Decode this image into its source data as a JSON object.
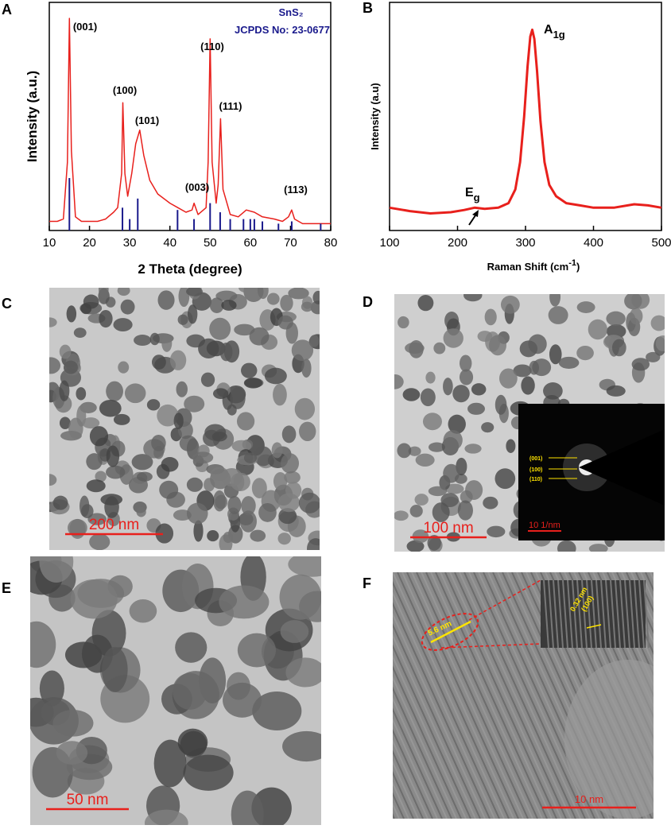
{
  "panel_labels": [
    "A",
    "B",
    "C",
    "D",
    "E",
    "F"
  ],
  "chart_data": [
    {
      "type": "line",
      "xlabel": "2 Theta (degree)",
      "ylabel": "Intensity (a.u.)",
      "legend_lines": [
        "SnS₂",
        "JCPDS No: 23-0677"
      ],
      "peak_labels": [
        "(001)",
        "(100)",
        "(101)",
        "(003)",
        "(110)",
        "(111)",
        "(113)"
      ],
      "xlim": [
        10,
        80
      ],
      "xticks": [
        10,
        20,
        30,
        40,
        50,
        60,
        70,
        80
      ],
      "ylim": [
        0,
        100
      ],
      "series": [
        {
          "color": "#e8201c",
          "style": "line",
          "x": [
            10,
            12,
            13.5,
            14.5,
            15,
            15.5,
            16.5,
            18,
            20,
            22,
            24,
            26,
            27,
            28,
            28.3,
            28.8,
            29.5,
            30.5,
            31.5,
            32.5,
            33.5,
            35,
            37,
            40,
            42,
            44,
            45.5,
            46,
            47,
            49,
            49.5,
            50,
            50.5,
            51.5,
            52,
            52.6,
            53.2,
            55,
            57,
            59,
            61,
            63,
            66,
            68,
            69.5,
            70.3,
            71,
            73,
            76,
            80
          ],
          "values": [
            4,
            4,
            5,
            30,
            93,
            35,
            6,
            4,
            4,
            4,
            5,
            8,
            10,
            25,
            56,
            25,
            15,
            25,
            38,
            44,
            33,
            22,
            16,
            12,
            10,
            8,
            9,
            12,
            7,
            10,
            30,
            84,
            30,
            12,
            20,
            49,
            18,
            7,
            6,
            9,
            8,
            6,
            5,
            4,
            6,
            9,
            5,
            3,
            3,
            3
          ]
        },
        {
          "color": "#1a1a8c",
          "style": "stick",
          "x": [
            15,
            28.2,
            30,
            32,
            41.9,
            46,
            50,
            52.5,
            55,
            58.3,
            60,
            61,
            63,
            67,
            70.3,
            77.5
          ],
          "values": [
            23,
            10,
            5,
            14,
            9,
            5,
            12,
            8,
            5,
            5,
            5,
            5,
            4,
            3,
            4,
            3
          ]
        }
      ]
    },
    {
      "type": "line",
      "xlabel": {
        "text": "Raman Shift (cm",
        "sup": "-1",
        "end": ")"
      },
      "ylabel": "Intensity (a.u)",
      "peak_labels": [
        {
          "base": "A",
          "sub": "1g"
        },
        {
          "base": "E",
          "sub": "g"
        }
      ],
      "xlim": [
        100,
        500
      ],
      "xticks": [
        100,
        200,
        300,
        400,
        500
      ],
      "ylim": [
        0,
        100
      ],
      "series": [
        {
          "color": "#e8201c",
          "style": "line",
          "x": [
            100,
            130,
            160,
            190,
            210,
            225,
            240,
            260,
            275,
            285,
            292,
            298,
            303,
            307,
            310,
            313,
            317,
            322,
            328,
            335,
            345,
            360,
            380,
            400,
            430,
            460,
            480,
            500
          ],
          "values": [
            10,
            8.5,
            7.5,
            8,
            9,
            10,
            9.5,
            10,
            12,
            18,
            30,
            50,
            72,
            85,
            88,
            84,
            70,
            48,
            30,
            20,
            15,
            12,
            11,
            10,
            10,
            11.5,
            11,
            10
          ]
        }
      ]
    }
  ],
  "images": [
    {
      "scale_bar": "200 nm"
    },
    {
      "scale_bar": "100 nm",
      "inset_scale": "10 1/nm",
      "inset_labels": [
        "(001)",
        "(100)",
        "(110)"
      ]
    },
    {
      "scale_bar": "50 nm"
    },
    {
      "scale_bar": "10 nm",
      "labels": [
        "5.6 nm",
        "0.32 nm",
        "(100)"
      ]
    }
  ]
}
